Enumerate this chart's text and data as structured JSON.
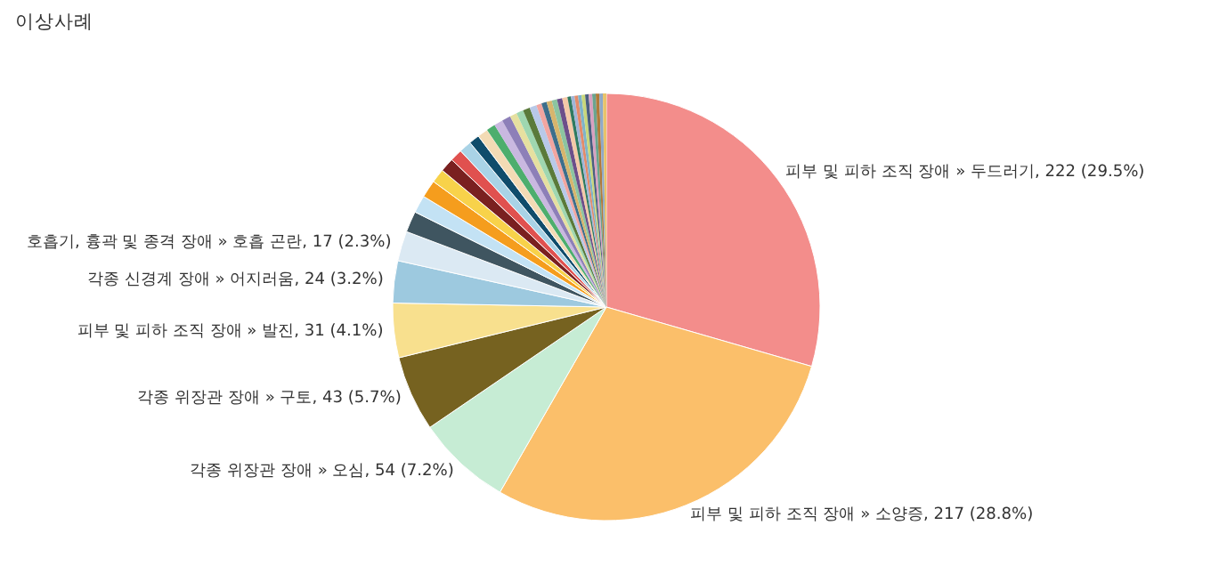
{
  "chart_data": {
    "type": "pie",
    "title": "이상사례",
    "categories": [
      "피부 및 피하 조직 장애 » 두드러기",
      "피부 및 피하 조직 장애 » 소양증",
      "각종 위장관 장애 » 오심",
      "각종 위장관 장애 » 구토",
      "피부 및 피하 조직 장애 » 발진",
      "각종 신경계 장애 » 어지러움",
      "호흡기, 흉곽 및 종격 장애 » 호흡 곤란",
      null,
      null,
      null,
      null,
      null,
      null,
      null,
      null,
      null,
      null,
      null,
      null,
      null,
      null,
      null,
      null,
      null,
      null,
      null,
      null,
      null,
      null,
      null,
      null,
      null,
      null,
      null,
      null,
      null,
      null,
      null,
      null,
      null
    ],
    "values": [
      222,
      217,
      54,
      43,
      31,
      24,
      17,
      12,
      10,
      10,
      8,
      8,
      7,
      7,
      6,
      6,
      5,
      5,
      5,
      4,
      4,
      4,
      4,
      3,
      3,
      3,
      3,
      3,
      3,
      2,
      2,
      2,
      2,
      2,
      2,
      2,
      2,
      2,
      2,
      2
    ],
    "value_labels": [
      "222 (29.5%)",
      "217 (28.8%)",
      "54 (7.2%)",
      "43 (5.7%)",
      "31 (4.1%)",
      "24 (3.2%)",
      "17 (2.3%)",
      null,
      null,
      null,
      null,
      null,
      null,
      null,
      null,
      null,
      null,
      null,
      null,
      null,
      null,
      null,
      null,
      null,
      null,
      null,
      null,
      null,
      null,
      null,
      null,
      null,
      null,
      null,
      null,
      null,
      null,
      null,
      null,
      null
    ],
    "colors": [
      "#f38d8b",
      "#fbbf6a",
      "#c6ecd4",
      "#766220",
      "#f8e08e",
      "#9dc9df",
      "#dbe9f3",
      "#3f5560",
      "#c3e2f4",
      "#f59d1d",
      "#f8d24a",
      "#7a2020",
      "#e0514f",
      "#a9d3e6",
      "#0f4c6b",
      "#f3dbb5",
      "#4dae6d",
      "#c9b8e0",
      "#8d7fb8",
      "#e6e0a0",
      "#9fd7b0",
      "#5a7a3a",
      "#b8c9e8",
      "#f2a5a0",
      "#3d6e8c",
      "#d7b56d",
      "#8cc4a0",
      "#6c4f8a",
      "#f4c9a8",
      "#2f7a5f",
      "#a0b5d8",
      "#e38b6a",
      "#7fb3c9",
      "#c8d77a",
      "#4a5f80",
      "#d9a0c0",
      "#6aa48f",
      "#b07a3a",
      "#8fa9c8",
      "#e8c36a"
    ]
  }
}
